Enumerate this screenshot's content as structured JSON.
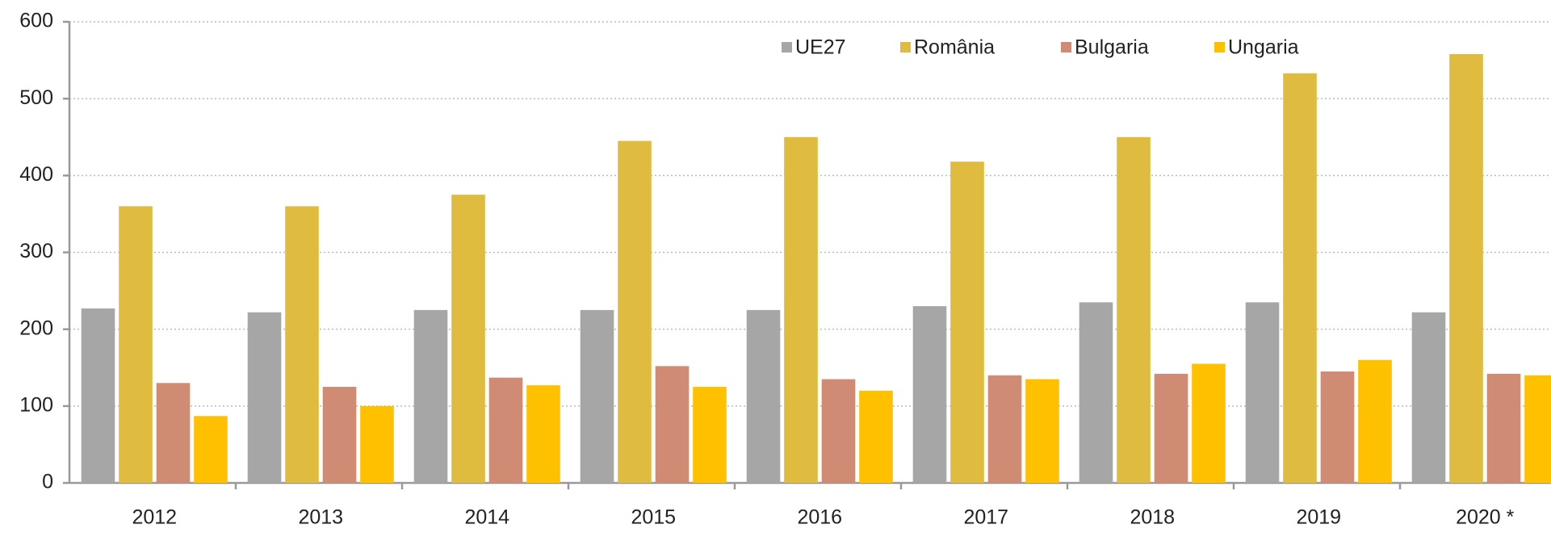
{
  "chart_data": {
    "type": "bar",
    "categories": [
      "2012",
      "2013",
      "2014",
      "2015",
      "2016",
      "2017",
      "2018",
      "2019",
      "2020 *"
    ],
    "series": [
      {
        "name": "UE27",
        "color": "#a6a6a6",
        "values": [
          227,
          222,
          225,
          225,
          225,
          230,
          235,
          235,
          222
        ]
      },
      {
        "name": "România",
        "color": "#dfbb3f",
        "values": [
          360,
          360,
          375,
          445,
          450,
          418,
          450,
          533,
          558
        ]
      },
      {
        "name": "Bulgaria",
        "color": "#d08b74",
        "values": [
          130,
          125,
          137,
          152,
          135,
          140,
          142,
          145,
          142
        ]
      },
      {
        "name": "Ungaria",
        "color": "#ffc000",
        "values": [
          87,
          100,
          127,
          125,
          120,
          135,
          155,
          160,
          140
        ]
      }
    ],
    "ylim": [
      0,
      600
    ],
    "yticks": [
      0,
      100,
      200,
      300,
      400,
      500,
      600
    ],
    "grid": true,
    "legend": "top-right"
  }
}
